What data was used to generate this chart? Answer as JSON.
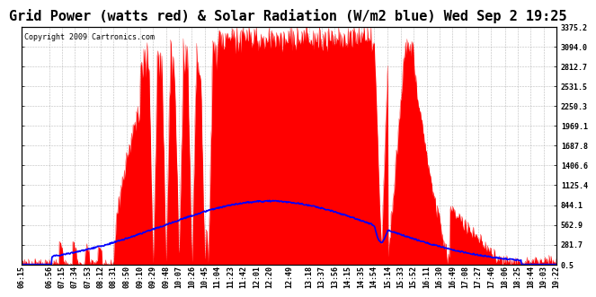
{
  "title": "Grid Power (watts red) & Solar Radiation (W/m2 blue) Wed Sep 2 19:25",
  "copyright": "Copyright 2009 Cartronics.com",
  "background_color": "#ffffff",
  "plot_bg_color": "#ffffff",
  "grid_color": "#aaaaaa",
  "red_color": "#ff0000",
  "blue_color": "#0000ff",
  "ytick_labels": [
    "0.5",
    "281.7",
    "562.9",
    "844.1",
    "1125.4",
    "1406.6",
    "1687.8",
    "1969.1",
    "2250.3",
    "2531.5",
    "2812.7",
    "3094.0",
    "3375.2"
  ],
  "ytick_values": [
    0.5,
    281.7,
    562.9,
    844.1,
    1125.4,
    1406.6,
    1687.8,
    1969.1,
    2250.3,
    2531.5,
    2812.7,
    3094.0,
    3375.2
  ],
  "ymax": 3375.2,
  "ymin": 0.5,
  "xtick_labels": [
    "06:15",
    "06:56",
    "07:15",
    "07:34",
    "07:53",
    "08:12",
    "08:31",
    "08:50",
    "09:10",
    "09:29",
    "09:48",
    "10:07",
    "10:26",
    "10:45",
    "11:04",
    "11:23",
    "11:42",
    "12:01",
    "12:20",
    "12:49",
    "13:18",
    "13:37",
    "13:56",
    "14:15",
    "14:35",
    "14:54",
    "15:14",
    "15:33",
    "15:52",
    "16:11",
    "16:30",
    "16:49",
    "17:08",
    "17:27",
    "17:46",
    "18:06",
    "18:25",
    "18:44",
    "19:03",
    "19:22"
  ],
  "title_fontsize": 11,
  "tick_fontsize": 6,
  "copyright_fontsize": 6
}
